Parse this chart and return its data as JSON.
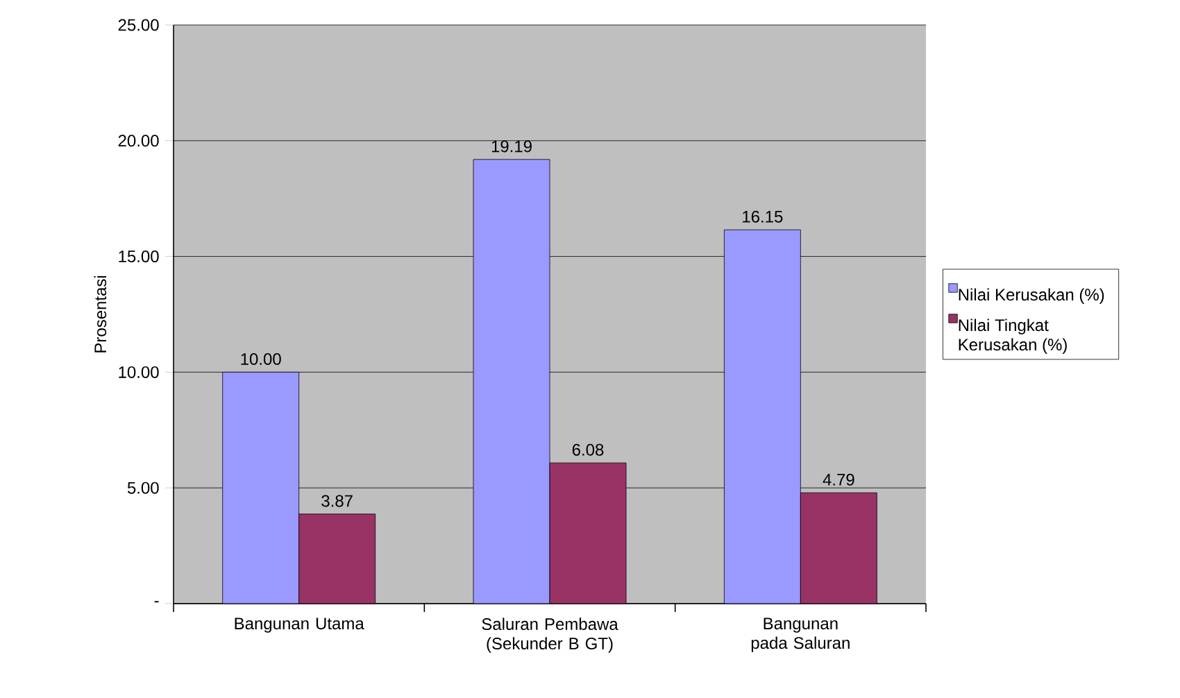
{
  "chart_data": {
    "type": "bar",
    "ylabel": "Prosentasi",
    "categories": [
      "Bangunan Utama",
      "Saluran Pembawa (Sekunder B GT)",
      "Bangunan pada Saluran"
    ],
    "series": [
      {
        "name": "Nilai Kerusakan (%)",
        "color": "#9999ff",
        "values": [
          10.0,
          19.19,
          16.15
        ],
        "value_labels": [
          "10.00",
          "19.19",
          "16.15"
        ]
      },
      {
        "name": "Nilai Tingkat Kerusakan (%)",
        "color": "#993366",
        "values": [
          3.87,
          6.08,
          4.79
        ],
        "value_labels": [
          "3.87",
          "6.08",
          "4.79"
        ]
      }
    ],
    "ylim": [
      0,
      25
    ],
    "yticks": [
      {
        "value": 0,
        "label": "-"
      },
      {
        "value": 5,
        "label": "5.00"
      },
      {
        "value": 10,
        "label": "10.00"
      },
      {
        "value": 15,
        "label": "15.00"
      },
      {
        "value": 20,
        "label": "20.00"
      },
      {
        "value": 25,
        "label": "25.00"
      }
    ],
    "grid": "y",
    "legend": "right"
  }
}
